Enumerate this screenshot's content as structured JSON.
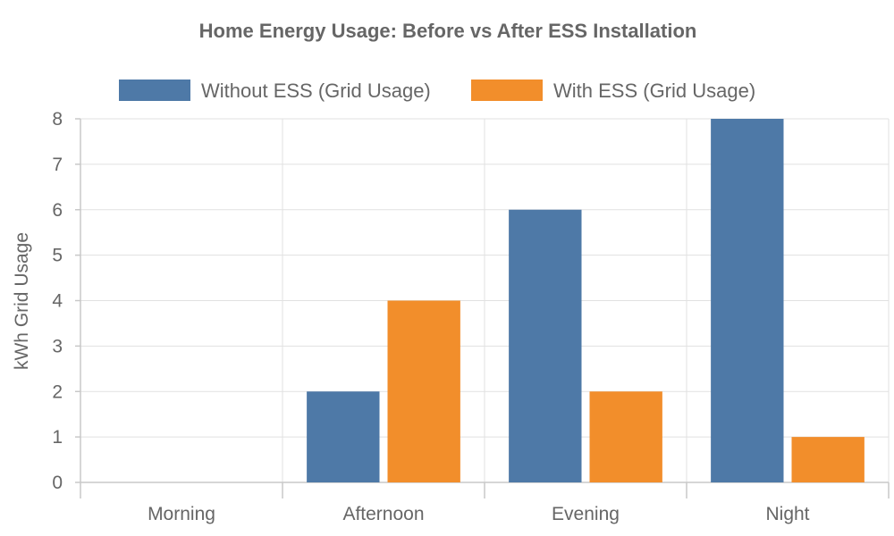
{
  "chart_data": {
    "type": "bar",
    "title": "Home Energy Usage: Before vs After ESS Installation",
    "xlabel": "",
    "ylabel": "kWh Grid Usage",
    "categories": [
      "Morning",
      "Afternoon",
      "Evening",
      "Night"
    ],
    "series": [
      {
        "name": "Without ESS (Grid Usage)",
        "color": "#4e79a7",
        "values": [
          0,
          2,
          6,
          8
        ]
      },
      {
        "name": "With ESS (Grid Usage)",
        "color": "#f28e2b",
        "values": [
          0,
          4,
          2,
          1
        ]
      }
    ],
    "ylim": [
      0,
      8
    ],
    "yticks": [
      0,
      1,
      2,
      3,
      4,
      5,
      6,
      7,
      8
    ],
    "grid": true,
    "legend_position": "top"
  }
}
